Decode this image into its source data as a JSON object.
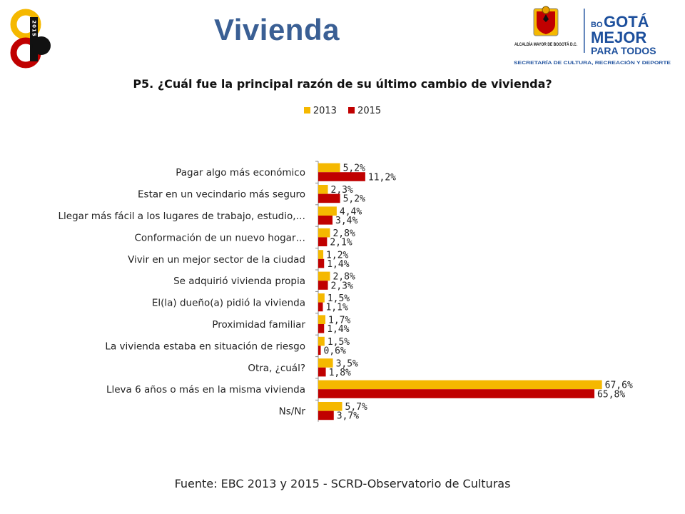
{
  "header": {
    "title": "Vivienda",
    "left_logo_text": "2015",
    "right_logo": {
      "entity": "ALCALDÍA MAYOR DE BOGOTÁ D.C.",
      "brand_line1_prefix": "BO",
      "brand_line1_main": "GOTÁ",
      "brand_line2": "MEJOR",
      "brand_line3": "PARA TODOS",
      "secretariat": "SECRETARÍA DE CULTURA, RECREACIÓN Y DEPORTE"
    }
  },
  "colors": {
    "title": "#3a5f94",
    "series_2013": "#f5b800",
    "series_2015": "#c00000",
    "logo_blue": "#1c4f9c"
  },
  "chart_data": {
    "type": "bar",
    "orientation": "horizontal",
    "title": "P5. ¿Cuál fue la principal razón de su último cambio de vivienda?",
    "categories": [
      "Pagar algo más económico",
      "Estar en un vecindario más seguro",
      "Llegar más fácil a los lugares de trabajo, estudio,…",
      "Conformación de un nuevo hogar…",
      "Vivir en un mejor sector de la ciudad",
      "Se adquirió vivienda propia",
      "El(la) dueño(a) pidió la vivienda",
      "Proximidad familiar",
      "La vivienda estaba en situación de riesgo",
      "Otra, ¿cuál?",
      "Lleva 6 años o más en la misma vivienda",
      "Ns/Nr"
    ],
    "series": [
      {
        "name": "2013",
        "color": "#f5b800",
        "values": [
          5.2,
          2.3,
          4.4,
          2.8,
          1.2,
          2.8,
          1.5,
          1.7,
          1.5,
          3.5,
          67.6,
          5.7
        ],
        "labels": [
          "5,2%",
          "2,3%",
          "4,4%",
          "2,8%",
          "1,2%",
          "2,8%",
          "1,5%",
          "1,7%",
          "1,5%",
          "3,5%",
          "67,6%",
          "5,7%"
        ]
      },
      {
        "name": "2015",
        "color": "#c00000",
        "values": [
          11.2,
          5.2,
          3.4,
          2.1,
          1.4,
          2.3,
          1.1,
          1.4,
          0.6,
          1.8,
          65.8,
          3.7
        ],
        "labels": [
          "11,2%",
          "5,2%",
          "3,4%",
          "2,1%",
          "1,4%",
          "2,3%",
          "1,1%",
          "1,4%",
          "0,6%",
          "1,8%",
          "65,8%",
          "3,7%"
        ]
      }
    ],
    "xlim": [
      0,
      68
    ],
    "grid": false,
    "legend_position": "top"
  },
  "footer": {
    "source": "Fuente: EBC 2013 y 2015 - SCRD-Observatorio  de Culturas"
  }
}
